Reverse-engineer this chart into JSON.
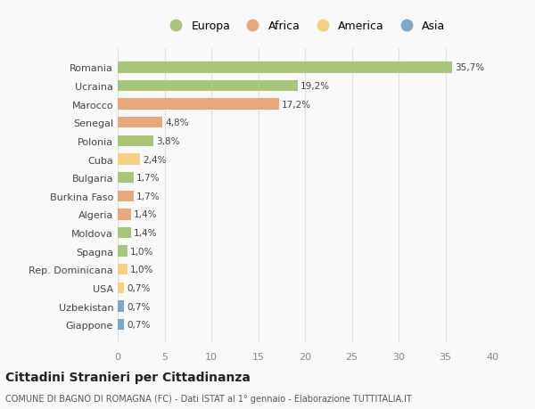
{
  "countries": [
    "Romania",
    "Ucraina",
    "Marocco",
    "Senegal",
    "Polonia",
    "Cuba",
    "Bulgaria",
    "Burkina Faso",
    "Algeria",
    "Moldova",
    "Spagna",
    "Rep. Dominicana",
    "USA",
    "Uzbekistan",
    "Giappone"
  ],
  "values": [
    35.7,
    19.2,
    17.2,
    4.8,
    3.8,
    2.4,
    1.7,
    1.7,
    1.4,
    1.4,
    1.0,
    1.0,
    0.7,
    0.7,
    0.7
  ],
  "labels": [
    "35,7%",
    "19,2%",
    "17,2%",
    "4,8%",
    "3,8%",
    "2,4%",
    "1,7%",
    "1,7%",
    "1,4%",
    "1,4%",
    "1,0%",
    "1,0%",
    "0,7%",
    "0,7%",
    "0,7%"
  ],
  "colors": [
    "#a8c57a",
    "#a8c57a",
    "#e8a87c",
    "#e8a87c",
    "#a8c57a",
    "#f5d080",
    "#a8c57a",
    "#e8a87c",
    "#e8a87c",
    "#a8c57a",
    "#a8c57a",
    "#f5d080",
    "#f5d080",
    "#7ea8c9",
    "#7ea8c9"
  ],
  "legend_labels": [
    "Europa",
    "Africa",
    "America",
    "Asia"
  ],
  "legend_colors": [
    "#a8c57a",
    "#e8a87c",
    "#f5d080",
    "#7ea8c9"
  ],
  "title": "Cittadini Stranieri per Cittadinanza",
  "subtitle": "COMUNE DI BAGNO DI ROMAGNA (FC) - Dati ISTAT al 1° gennaio - Elaborazione TUTTITALIA.IT",
  "xlim": [
    0,
    40
  ],
  "xticks": [
    0,
    5,
    10,
    15,
    20,
    25,
    30,
    35,
    40
  ],
  "background_color": "#f9f9f9",
  "grid_color": "#e0e0e0",
  "bar_height": 0.6
}
